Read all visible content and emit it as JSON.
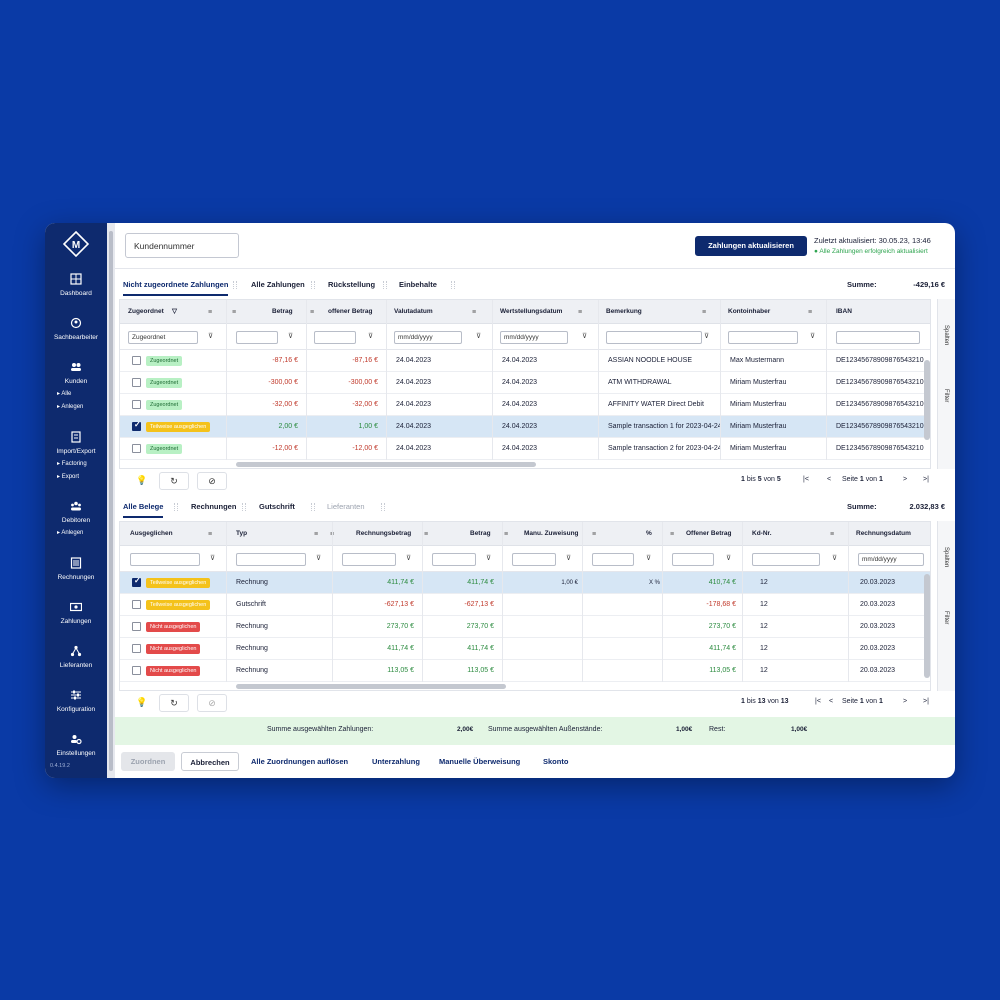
{
  "sidebar": {
    "items": [
      {
        "label": "Dashboard",
        "icon": "dashboard-icon"
      },
      {
        "label": "Sachbearbeiter",
        "icon": "person-icon"
      },
      {
        "label": "Kunden",
        "icon": "users-icon"
      },
      {
        "label": "Import/Export",
        "icon": "import-icon"
      },
      {
        "label": "Debitoren",
        "icon": "group-icon"
      },
      {
        "label": "Rechnungen",
        "icon": "invoice-icon"
      },
      {
        "label": "Zahlungen",
        "icon": "payment-icon"
      },
      {
        "label": "Lieferanten",
        "icon": "network-icon"
      },
      {
        "label": "Konfiguration",
        "icon": "sliders-icon"
      },
      {
        "label": "Einstellungen",
        "icon": "settings-icon"
      }
    ],
    "sub": {
      "kunden_alle": "Alle",
      "kunden_anlegen": "Anlegen",
      "factoring": "Factoring",
      "export": "Export",
      "debitoren_anlegen": "Anlegen"
    },
    "version": "0.4.19.2"
  },
  "topbar": {
    "customer_placeholder": "Kundennummer",
    "update_button": "Zahlungen aktualisieren",
    "last_updated": "Zuletzt aktualisiert: 30.05.23, 13:46",
    "status": "● Alle Zahlungen erfolgreich aktualisiert"
  },
  "payments": {
    "tabs": [
      "Nicht zugeordnete Zahlungen",
      "Alle Zahlungen",
      "Rückstellung",
      "Einbehalte"
    ],
    "sum_label": "Summe:",
    "sum_value": "-429,16 €",
    "columns": [
      "Zugeordnet",
      "Betrag",
      "offener Betrag",
      "Valutadatum",
      "Wertstellungsdatum",
      "Bemerkung",
      "Kontoinhaber",
      "IBAN"
    ],
    "filter_zugeordnet": "Zugeordnet",
    "date_placeholder": "mm/dd/yyyy",
    "rows": [
      {
        "status": "Zugeordnet",
        "betrag": "-87,16 €",
        "offen": "-87,16 €",
        "valuta": "24.04.2023",
        "wert": "24.04.2023",
        "bemerkung": "ASSIAN NOODLE HOUSE",
        "inhaber": "Max Mustermann",
        "iban": "DE12345678909876543210"
      },
      {
        "status": "Zugeordnet",
        "betrag": "-300,00 €",
        "offen": "-300,00 €",
        "valuta": "24.04.2023",
        "wert": "24.04.2023",
        "bemerkung": "ATM WITHDRAWAL",
        "inhaber": "Miriam Musterfrau",
        "iban": "DE12345678909876543210"
      },
      {
        "status": "Zugeordnet",
        "betrag": "-32,00 €",
        "offen": "-32,00 €",
        "valuta": "24.04.2023",
        "wert": "24.04.2023",
        "bemerkung": "AFFINITY WATER Direct Debit",
        "inhaber": "Miriam Musterfrau",
        "iban": "DE12345678909876543210"
      },
      {
        "status": "Teilweise ausgeglichen",
        "betrag": "2,00 €",
        "offen": "1,00 €",
        "valuta": "24.04.2023",
        "wert": "24.04.2023",
        "bemerkung": "Sample transaction 1 for 2023-04-24",
        "inhaber": "Miriam Musterfrau",
        "iban": "DE12345678909876543210"
      },
      {
        "status": "Zugeordnet",
        "betrag": "-12,00 €",
        "offen": "-12,00 €",
        "valuta": "24.04.2023",
        "wert": "24.04.2023",
        "bemerkung": "Sample transaction 2 for 2023-04-24",
        "inhaber": "Miriam Musterfrau",
        "iban": "DE12345678909876543210"
      }
    ],
    "pager": {
      "from": "1",
      "bis": "bis",
      "to": "5",
      "von": "von",
      "total": "5",
      "seite": "Seite",
      "page": "1",
      "pages": "1"
    }
  },
  "documents": {
    "tabs": [
      "Alle Belege",
      "Rechnungen",
      "Gutschrift",
      "Lieferanten"
    ],
    "sum_label": "Summe:",
    "sum_value": "2.032,83 €",
    "columns": [
      "Ausgeglichen",
      "Typ",
      "Rechnungsbetrag",
      "Betrag",
      "Manu. Zuweisung",
      "%",
      "Offener Betrag",
      "Kd-Nr.",
      "Rechnungsdatum"
    ],
    "date_placeholder": "mm/dd/yyyy",
    "rows": [
      {
        "status": "Teilweise ausgeglichen",
        "typ": "Rechnung",
        "rbetrag": "411,74 €",
        "betrag": "411,74 €",
        "manu": "1,00 €",
        "pct": "X %",
        "offen": "410,74 €",
        "kd": "12",
        "datum": "20.03.2023"
      },
      {
        "status": "Teilweise ausgeglichen",
        "typ": "Gutschrift",
        "rbetrag": "-627,13 €",
        "betrag": "-627,13 €",
        "manu": "",
        "pct": "",
        "offen": "-178,68 €",
        "kd": "12",
        "datum": "20.03.2023"
      },
      {
        "status": "Nicht ausgeglichen",
        "typ": "Rechnung",
        "rbetrag": "273,70 €",
        "betrag": "273,70 €",
        "manu": "",
        "pct": "",
        "offen": "273,70 €",
        "kd": "12",
        "datum": "20.03.2023"
      },
      {
        "status": "Nicht ausgeglichen",
        "typ": "Rechnung",
        "rbetrag": "411,74 €",
        "betrag": "411,74 €",
        "manu": "",
        "pct": "",
        "offen": "411,74 €",
        "kd": "12",
        "datum": "20.03.2023"
      },
      {
        "status": "Nicht ausgeglichen",
        "typ": "Rechnung",
        "rbetrag": "113,05 €",
        "betrag": "113,05 €",
        "manu": "",
        "pct": "",
        "offen": "113,05 €",
        "kd": "12",
        "datum": "20.03.2023"
      }
    ],
    "pager": {
      "from": "1",
      "bis": "bis",
      "to": "13",
      "von": "von",
      "total": "13",
      "seite": "Seite",
      "page": "1",
      "pages": "1"
    }
  },
  "side_labels": {
    "spalten": "Spalten",
    "filter": "Filter"
  },
  "summary": {
    "selected_payments_label": "Summe ausgewählten Zahlungen:",
    "selected_payments_value": "2,00€",
    "selected_open_label": "Summe ausgewählten Außenstände:",
    "selected_open_value": "1,00€",
    "rest_label": "Rest:",
    "rest_value": "1,00€"
  },
  "actions": {
    "assign": "Zuordnen",
    "cancel": "Abbrechen",
    "resolve_all": "Alle Zuordnungen auflösen",
    "underpayment": "Unterzahlung",
    "manual_transfer": "Manuelle Überweisung",
    "discount": "Skonto"
  },
  "colors": {
    "sidebar": "#0e2a6e",
    "accent": "#0e2a6e",
    "background": "#0a3aa6",
    "negative": "#c0392b",
    "positive": "#2a8a3e"
  }
}
